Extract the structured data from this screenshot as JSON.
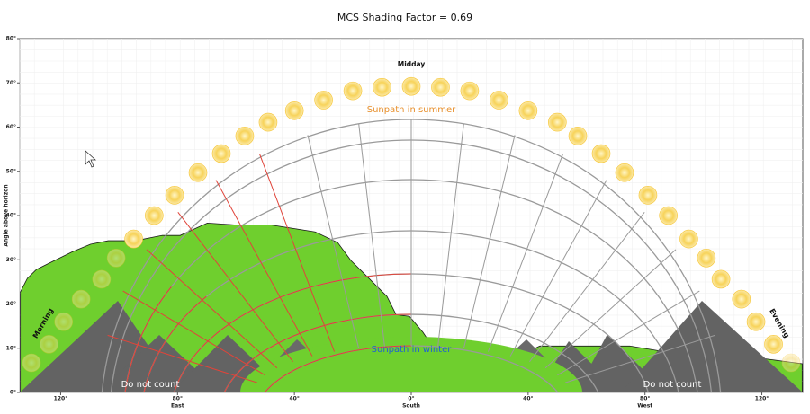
{
  "chart_data": {
    "type": "sunpath",
    "title": "MCS Shading Factor = 0.69",
    "y_label": "Angle above horizon",
    "xlim": [
      -134,
      134
    ],
    "ylim": [
      0,
      80
    ],
    "yticks": [
      {
        "value": 0,
        "label": "0°"
      },
      {
        "value": 10,
        "label": "10°"
      },
      {
        "value": 20,
        "label": "20°"
      },
      {
        "value": 30,
        "label": "30°"
      },
      {
        "value": 40,
        "label": "40°"
      },
      {
        "value": 50,
        "label": "50°"
      },
      {
        "value": 60,
        "label": "60°"
      },
      {
        "value": 70,
        "label": "70°"
      },
      {
        "value": 80,
        "label": "80°"
      }
    ],
    "xticks": [
      {
        "value": -120,
        "label": "120°"
      },
      {
        "value": -80,
        "label": "80°"
      },
      {
        "value": -40,
        "label": "40°"
      },
      {
        "value": 0,
        "label": "0°"
      },
      {
        "value": 40,
        "label": "40°"
      },
      {
        "value": 80,
        "label": "80°"
      },
      {
        "value": 120,
        "label": "120°"
      }
    ],
    "compass": [
      {
        "value": -80,
        "label": "East"
      },
      {
        "value": 0,
        "label": "South"
      },
      {
        "value": 80,
        "label": "West"
      }
    ],
    "grid": true,
    "annotations": {
      "midday": "Midday",
      "summer": "Sunpath in summer",
      "winter": "Sunpath in winter",
      "morning": "Morning",
      "evening": "Evening",
      "do_not_count_left": "Do not count",
      "do_not_count_right": "Do not count"
    },
    "horizon": {
      "name": "Horizon",
      "color": "#6fcf2e",
      "x": [
        -133.8,
        -131.4,
        -128.3,
        -122.2,
        -116,
        -109.8,
        -103.7,
        -94.5,
        -85.2,
        -79.1,
        -69.8,
        -60.6,
        -48.3,
        -32.9,
        -25.2,
        -20.6,
        -14.5,
        -8.3,
        -5.2,
        -0.6,
        4,
        10.2,
        11.7,
        13.2,
        14.8,
        16.9,
        19.4,
        37.8,
        44,
        74.8,
        93.2,
        117.8,
        133.8
      ],
      "y": [
        22.7,
        25.8,
        27.8,
        29.8,
        31.8,
        33.5,
        34.3,
        34.3,
        35.5,
        35.5,
        38.3,
        37.9,
        37.9,
        36.3,
        33.9,
        29.8,
        25.8,
        21.7,
        17.6,
        17.2,
        13.6,
        7.5,
        0,
        7.5,
        0,
        8.5,
        8.5,
        8.5,
        10.5,
        10.5,
        8.5,
        7.9,
        6.5
      ]
    },
    "sun": {
      "name": "Sun",
      "color": "#f7c531",
      "x": [
        -130,
        -124,
        -119,
        -113,
        -106,
        -101,
        -95,
        -88,
        -81,
        -73,
        -65,
        -57,
        -49,
        -40,
        -30,
        -20,
        -10,
        0,
        10,
        20,
        30,
        40,
        50,
        57,
        65,
        73,
        81,
        88,
        95,
        101,
        106,
        113,
        118,
        124,
        130
      ],
      "y": [
        6.7,
        10.9,
        16,
        21.1,
        25.6,
        30.4,
        34.7,
        40,
        44.6,
        49.7,
        54,
        58,
        61.1,
        63.7,
        66.1,
        68.2,
        69,
        69.2,
        69,
        68.2,
        66.1,
        63.7,
        61.1,
        58,
        54,
        49.7,
        44.6,
        40,
        34.7,
        30.4,
        25.6,
        21.1,
        16,
        10.9,
        6.7
      ]
    }
  }
}
